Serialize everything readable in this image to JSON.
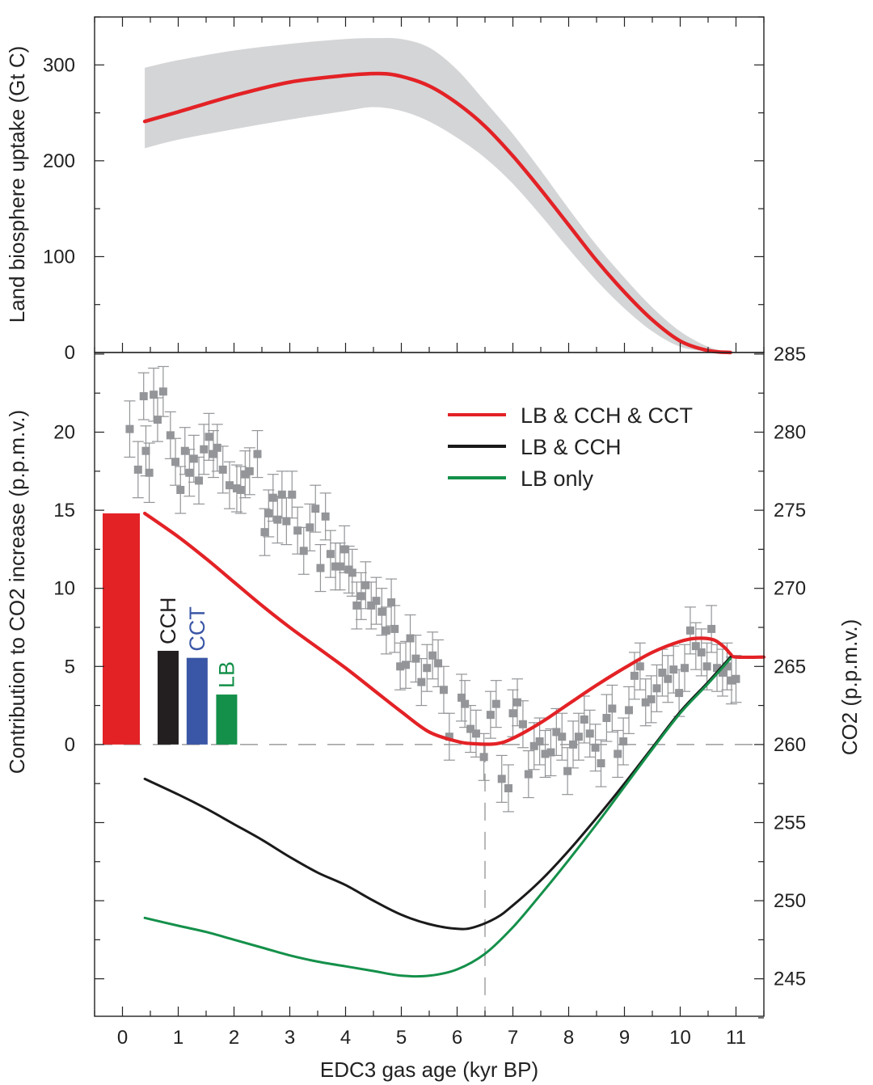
{
  "chart_data": [
    {
      "type": "area",
      "panel": "top",
      "ylabel": "Land biosphere uptake (Gt C)",
      "xlim": [
        -0.5,
        11.5
      ],
      "ylim": [
        0,
        350
      ],
      "yticks": [
        0,
        100,
        200,
        300
      ],
      "ytick_labels": [
        "0",
        "100",
        "200",
        "300"
      ],
      "series": [
        {
          "color": "#e32226",
          "x": [
            0.4,
            1,
            2,
            3,
            4,
            4.6,
            5,
            5.5,
            6,
            6.5,
            7,
            7.5,
            8,
            8.5,
            9,
            9.5,
            10,
            10.5,
            10.9
          ],
          "values": [
            241,
            251,
            268,
            282,
            289,
            291,
            288,
            278,
            260,
            236,
            205,
            170,
            133,
            96,
            63,
            34,
            12,
            2,
            0
          ]
        }
      ],
      "band": {
        "color": "#d4d5d7",
        "x": [
          0.4,
          1,
          2,
          3,
          4,
          4.5,
          5,
          5.5,
          6,
          6.5,
          7,
          7.5,
          8,
          8.5,
          9,
          9.5,
          10,
          10.5,
          10.9
        ],
        "upper": [
          297,
          305,
          315,
          322,
          327,
          328,
          327,
          318,
          295,
          262,
          228,
          190,
          150,
          112,
          78,
          47,
          22,
          6,
          0
        ],
        "lower": [
          213,
          222,
          233,
          243,
          252,
          256,
          252,
          241,
          224,
          203,
          176,
          143,
          108,
          75,
          46,
          22,
          6,
          1,
          0
        ]
      }
    },
    {
      "type": "line",
      "panel": "bottom",
      "xlabel": "EDC3 gas age (kyr BP)",
      "ylabel_left": "Contribution to CO2 increase (p.p.m.v.)",
      "ylabel_right": "CO2 (p.p.m.v.)",
      "xlim": [
        -0.5,
        11.5
      ],
      "xticks": [
        0,
        1,
        2,
        3,
        4,
        5,
        6,
        7,
        8,
        9,
        10,
        11
      ],
      "xtick_labels": [
        "0",
        "1",
        "2",
        "3",
        "4",
        "5",
        "6",
        "7",
        "8",
        "9",
        "10",
        "11"
      ],
      "ylim_left": [
        -17.4,
        25.1
      ],
      "yticks_left": [
        0,
        5,
        10,
        15,
        20
      ],
      "ytick_labels_left": [
        "0",
        "5",
        "10",
        "15",
        "20"
      ],
      "ylim_right": [
        242.6,
        285.1
      ],
      "yticks_right": [
        245,
        250,
        255,
        260,
        265,
        270,
        275,
        280,
        285
      ],
      "ytick_labels_right": [
        "245",
        "250",
        "255",
        "260",
        "265",
        "270",
        "275",
        "280",
        "285"
      ],
      "vline_x": 6.5,
      "legend": [
        {
          "label": "LB & CCH & CCT",
          "color": "#e32226"
        },
        {
          "label": "LB & CCH",
          "color": "#1a1a1a"
        },
        {
          "label": "LB only",
          "color": "#14904a"
        }
      ],
      "series": [
        {
          "name": "LB & CCH & CCT",
          "color": "#e32226",
          "x": [
            0.4,
            1,
            1.5,
            2,
            2.5,
            3,
            3.5,
            4,
            4.5,
            5,
            5.5,
            6,
            6.3,
            6.7,
            7,
            7.5,
            8,
            8.5,
            9,
            9.5,
            10,
            10.3,
            10.6,
            10.8,
            10.9,
            11.0,
            11.5
          ],
          "values": [
            14.8,
            13.3,
            11.9,
            10.4,
            8.9,
            7.5,
            6.2,
            4.9,
            3.5,
            2.1,
            0.8,
            0.2,
            0.05,
            0.05,
            0.4,
            1.4,
            2.6,
            3.8,
            4.9,
            5.9,
            6.6,
            6.8,
            6.7,
            6.2,
            5.8,
            5.6,
            5.6
          ]
        },
        {
          "name": "LB & CCH",
          "color": "#1a1a1a",
          "x": [
            0.4,
            1,
            1.5,
            2,
            2.5,
            3,
            3.5,
            4,
            4.5,
            5,
            5.5,
            6,
            6.3,
            6.7,
            7,
            7.5,
            8,
            8.5,
            9,
            9.5,
            10,
            10.5,
            10.9
          ],
          "values": [
            -2.2,
            -3.2,
            -4.1,
            -5.1,
            -6.1,
            -7.2,
            -8.2,
            -9.0,
            -10.0,
            -10.9,
            -11.5,
            -11.8,
            -11.7,
            -11.1,
            -10.3,
            -8.7,
            -6.8,
            -4.7,
            -2.5,
            -0.2,
            2.1,
            4.0,
            5.6
          ]
        },
        {
          "name": "LB only",
          "color": "#14904a",
          "x": [
            0.4,
            1,
            1.5,
            2,
            2.5,
            3,
            3.5,
            4,
            4.5,
            5,
            5.5,
            6,
            6.5,
            7,
            7.5,
            8,
            8.5,
            9,
            9.5,
            10,
            10.5,
            10.9
          ],
          "values": [
            -11.1,
            -11.6,
            -12.0,
            -12.5,
            -13.0,
            -13.5,
            -13.9,
            -14.2,
            -14.5,
            -14.8,
            -14.8,
            -14.4,
            -13.4,
            -11.7,
            -9.6,
            -7.4,
            -5.1,
            -2.7,
            -0.3,
            2.0,
            3.9,
            5.5
          ]
        }
      ],
      "bars": [
        {
          "x": 0.3,
          "value": 14.8,
          "color": "#e32226",
          "label": ""
        },
        {
          "x": 0.63,
          "value": 6.0,
          "color": "#231f20",
          "label": "CCH"
        },
        {
          "x": 1.15,
          "value": 5.55,
          "color": "#3a56a6",
          "label": "CCT"
        },
        {
          "x": 1.68,
          "value": 3.2,
          "color": "#14904a",
          "label": "LB"
        }
      ],
      "scatter": {
        "color": "#939598",
        "axis": "right",
        "x": [
          0.13,
          0.28,
          0.38,
          0.42,
          0.48,
          0.56,
          0.63,
          0.73,
          0.86,
          0.95,
          1.04,
          1.12,
          1.2,
          1.28,
          1.37,
          1.46,
          1.55,
          1.63,
          1.7,
          1.8,
          1.92,
          2.05,
          2.12,
          2.2,
          2.28,
          2.42,
          2.55,
          2.62,
          2.7,
          2.78,
          2.86,
          2.94,
          3.04,
          3.14,
          3.25,
          3.36,
          3.46,
          3.55,
          3.64,
          3.73,
          3.82,
          3.9,
          3.98,
          4.06,
          4.12,
          4.2,
          4.28,
          4.36,
          4.46,
          4.55,
          4.65,
          4.73,
          4.82,
          4.88,
          4.98,
          5.08,
          5.16,
          5.26,
          5.36,
          5.46,
          5.56,
          5.66,
          5.76,
          5.86,
          6.08,
          6.14,
          6.24,
          6.34,
          6.48,
          6.6,
          6.7,
          6.8,
          6.92,
          7.0,
          7.08,
          7.18,
          7.28,
          7.38,
          7.48,
          7.58,
          7.68,
          7.78,
          7.88,
          7.98,
          8.08,
          8.18,
          8.28,
          8.38,
          8.48,
          8.58,
          8.68,
          8.78,
          8.88,
          8.98,
          9.08,
          9.18,
          9.28,
          9.38,
          9.48,
          9.58,
          9.68,
          9.78,
          9.88,
          9.98,
          10.08,
          10.18,
          10.28,
          10.38,
          10.48,
          10.56,
          10.66,
          10.76,
          10.84,
          10.92,
          11.0
        ],
        "values": [
          280.2,
          277.6,
          282.3,
          278.8,
          277.4,
          282.4,
          280.8,
          282.6,
          279.8,
          278.1,
          276.3,
          278.8,
          277.4,
          278.3,
          276.9,
          278.9,
          279.7,
          278.6,
          279.0,
          277.6,
          276.6,
          276.4,
          276.3,
          277.3,
          277.5,
          278.6,
          273.6,
          274.8,
          275.8,
          274.4,
          276.0,
          274.3,
          276.0,
          273.7,
          272.4,
          273.9,
          275.1,
          271.3,
          274.6,
          272.2,
          271.4,
          271.4,
          272.5,
          271.2,
          271.0,
          268.9,
          269.5,
          270.2,
          268.9,
          269.2,
          268.5,
          267.3,
          269.1,
          267.4,
          265.0,
          265.1,
          266.8,
          265.5,
          264.0,
          264.9,
          265.7,
          265.2,
          263.5,
          260.5,
          263.0,
          262.6,
          261.0,
          260.7,
          259.2,
          261.9,
          262.6,
          257.8,
          257.2,
          262.0,
          262.7,
          261.3,
          258.1,
          259.9,
          260.2,
          259.4,
          259.5,
          260.8,
          260.5,
          258.3,
          260.0,
          260.5,
          261.6,
          260.7,
          259.8,
          258.8,
          261.7,
          262.3,
          259.4,
          260.2,
          262.2,
          264.4,
          265.0,
          262.7,
          262.9,
          263.6,
          264.6,
          264.2,
          264.8,
          263.3,
          264.9,
          267.3,
          266.3,
          265.9,
          265.0,
          267.4,
          264.9,
          264.6,
          265.0,
          264.1,
          264.2
        ],
        "errors": [
          1.8,
          1.8,
          1.5,
          1.6,
          1.9,
          1.7,
          1.4,
          1.6,
          1.5,
          1.5,
          1.5,
          1.5,
          1.5,
          1.5,
          1.5,
          1.6,
          1.5,
          1.5,
          1.5,
          1.5,
          1.5,
          1.5,
          1.5,
          1.5,
          1.5,
          1.5,
          1.5,
          1.5,
          1.5,
          1.5,
          1.5,
          1.5,
          1.5,
          1.5,
          1.5,
          1.5,
          1.5,
          1.5,
          1.5,
          1.5,
          1.5,
          1.5,
          1.5,
          1.5,
          1.5,
          1.5,
          1.5,
          1.5,
          1.5,
          1.5,
          1.5,
          1.5,
          1.5,
          1.5,
          1.5,
          1.5,
          1.5,
          1.5,
          1.5,
          1.5,
          1.5,
          1.5,
          1.5,
          1.5,
          1.5,
          1.5,
          1.5,
          1.5,
          1.5,
          1.5,
          1.5,
          1.5,
          1.5,
          1.5,
          1.5,
          1.5,
          1.5,
          1.5,
          1.5,
          1.5,
          1.5,
          1.5,
          1.5,
          1.5,
          1.5,
          1.5,
          1.5,
          1.5,
          1.5,
          1.5,
          1.5,
          1.5,
          1.5,
          1.5,
          1.5,
          1.5,
          1.5,
          1.5,
          1.5,
          1.5,
          1.5,
          1.5,
          1.5,
          1.5,
          1.5,
          1.5,
          1.5,
          1.5,
          1.5,
          1.5,
          1.5,
          1.5,
          1.5,
          1.5,
          1.5
        ]
      }
    }
  ]
}
